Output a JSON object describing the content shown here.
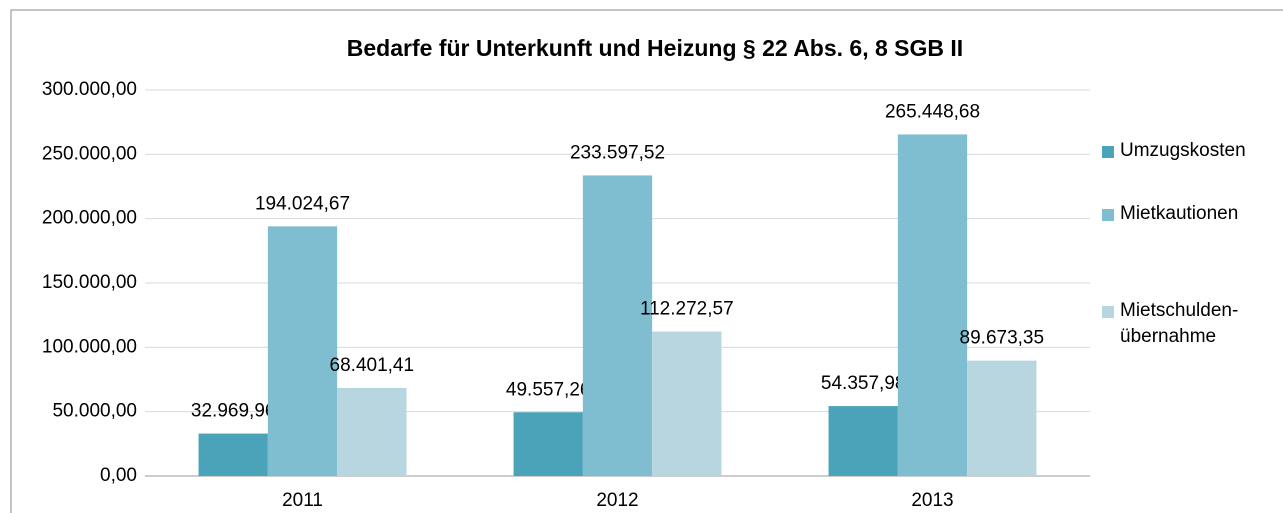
{
  "chart_data": {
    "type": "bar",
    "title": "Bedarfe für Unterkunft und Heizung § 22 Abs. 6, 8 SGB II",
    "categories": [
      "2011",
      "2012",
      "2013"
    ],
    "series": [
      {
        "name": "Umzugskosten",
        "color": "#4aa3b8",
        "values": [
          32969.96,
          49557.26,
          54357.98
        ],
        "value_labels": [
          "32.969,96",
          "49.557,26",
          "54.357,98"
        ]
      },
      {
        "name": "Mietkautionen",
        "color": "#7fbdd0",
        "values": [
          194024.67,
          233597.52,
          265448.68
        ],
        "value_labels": [
          "194.024,67",
          "233.597,52",
          "265.448,68"
        ]
      },
      {
        "name": "Mietschulden-übernahme",
        "color": "#b7d6e0",
        "values": [
          68401.41,
          112272.57,
          89673.35
        ],
        "value_labels": [
          "68.401,41",
          "112.272,57",
          "89.673,35"
        ]
      }
    ],
    "ylim": [
      0,
      300000
    ],
    "yticks": [
      {
        "value": 0,
        "label": "0,00"
      },
      {
        "value": 50000,
        "label": "50.000,00"
      },
      {
        "value": 100000,
        "label": "100.000,00"
      },
      {
        "value": 150000,
        "label": "150.000,00"
      },
      {
        "value": 200000,
        "label": "200.000,00"
      },
      {
        "value": 250000,
        "label": "250.000,00"
      },
      {
        "value": 300000,
        "label": "300.000,00"
      }
    ],
    "grid": true,
    "legend": "right"
  }
}
